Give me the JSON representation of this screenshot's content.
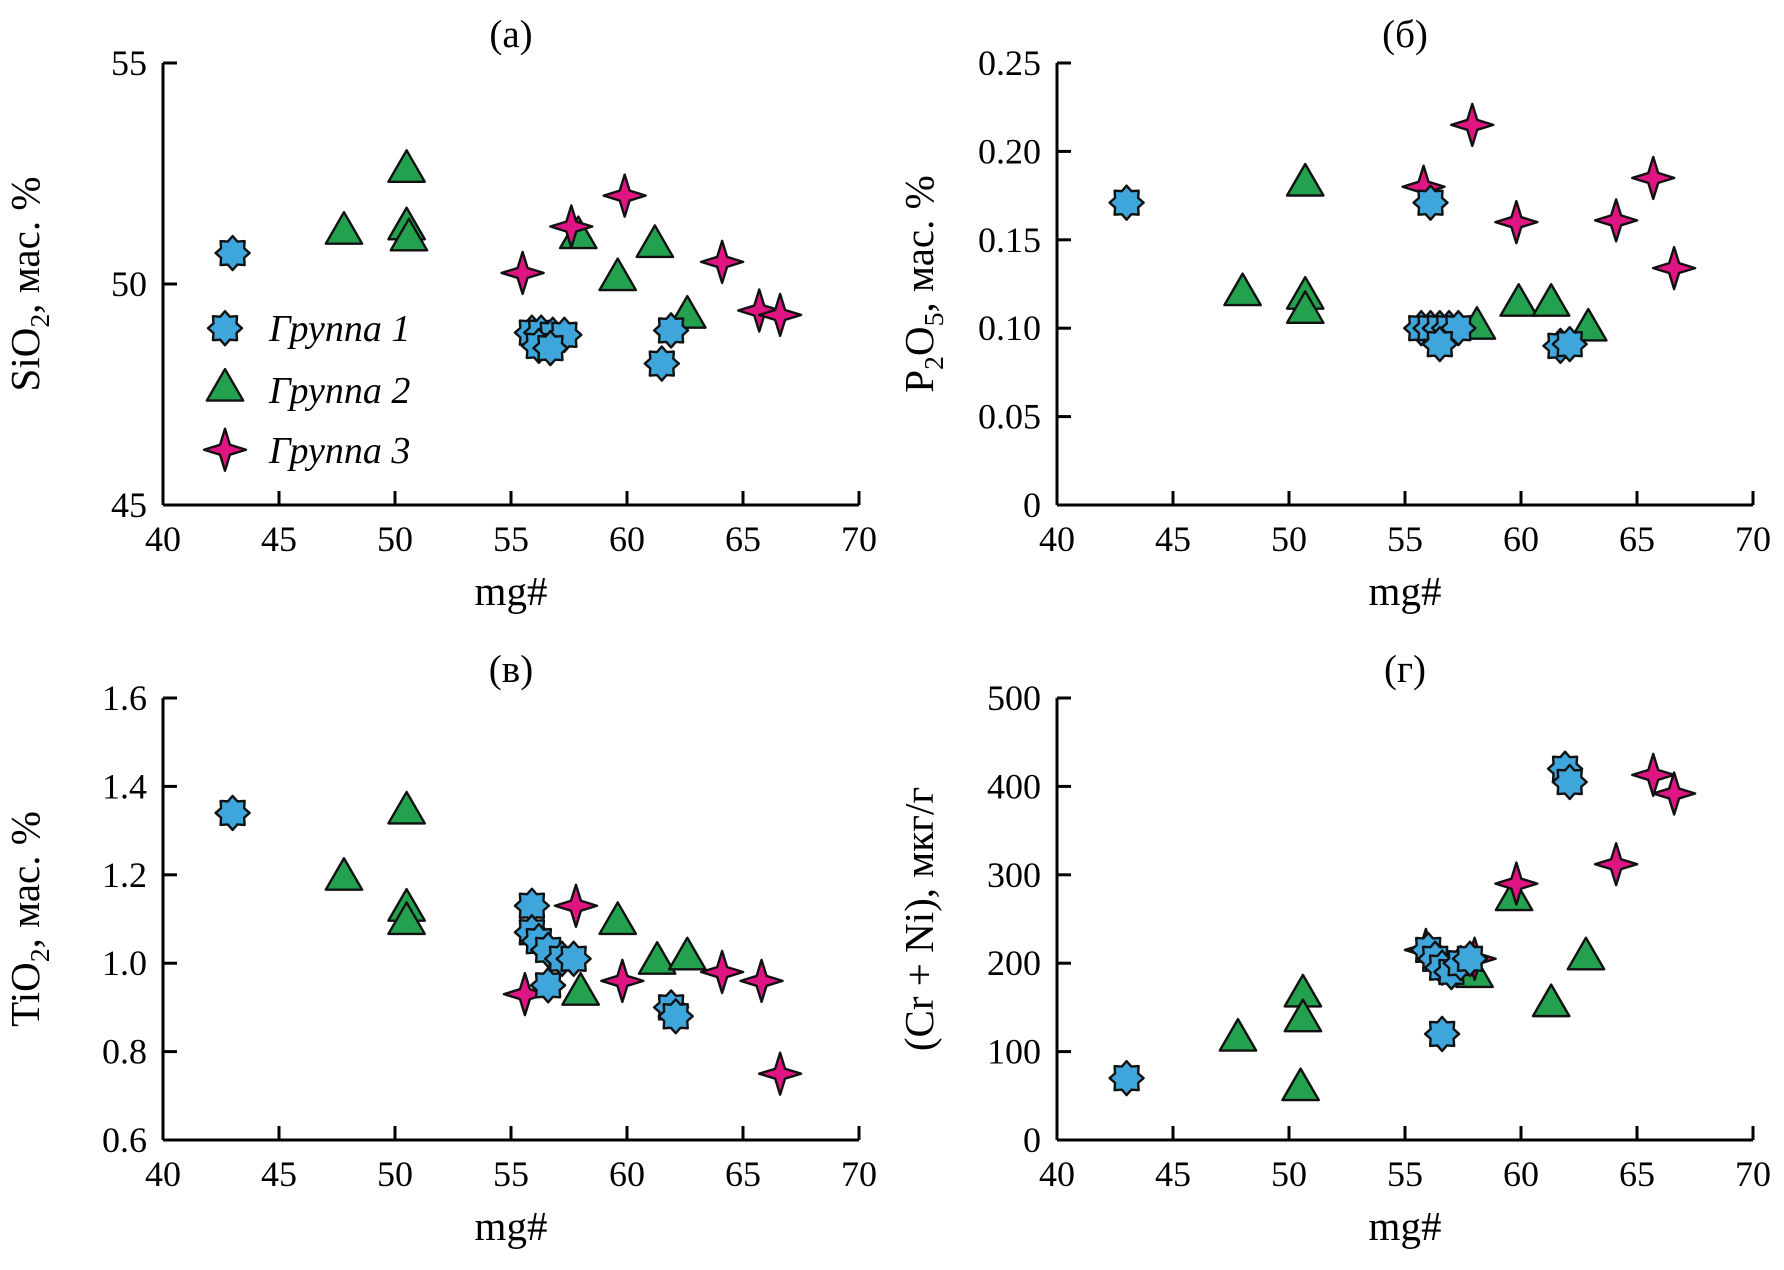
{
  "figure": {
    "background": "#ffffff",
    "axis_color": "#000000",
    "marker_stroke": "#111111",
    "groups": [
      {
        "id": "g1",
        "label": "Группа 1",
        "marker": "octagram",
        "fill": "#3FA6DC"
      },
      {
        "id": "g2",
        "label": "Группа 2",
        "marker": "triangle",
        "fill": "#23A14E"
      },
      {
        "id": "g3",
        "label": "Группа 3",
        "marker": "star4",
        "fill": "#E01584"
      }
    ]
  },
  "chart_data": [
    {
      "id": "a",
      "type": "scatter",
      "title": "(а)",
      "xlabel": "mg#",
      "ylabel": [
        {
          "text": "SiO"
        },
        {
          "text": "2",
          "sub": true
        },
        {
          "text": ", мас. %"
        }
      ],
      "xlim": [
        40,
        70
      ],
      "ylim": [
        45,
        55
      ],
      "xticks": {
        "values": [
          40,
          45,
          50,
          55,
          60,
          65,
          70
        ],
        "labels": [
          "40",
          "45",
          "50",
          "55",
          "60",
          "65",
          "70"
        ]
      },
      "yticks": {
        "values": [
          45,
          50,
          55
        ],
        "labels": [
          "45",
          "50",
          "55"
        ]
      },
      "legend": {
        "show": true
      },
      "series": [
        {
          "group": "g1",
          "points": [
            [
              43,
              50.7
            ],
            [
              55.9,
              48.9
            ],
            [
              56.3,
              48.9
            ],
            [
              56.8,
              48.85
            ],
            [
              57.3,
              48.85
            ],
            [
              56.2,
              48.6
            ],
            [
              56.7,
              48.55
            ],
            [
              61.9,
              48.95
            ],
            [
              61.5,
              48.2
            ]
          ]
        },
        {
          "group": "g2",
          "points": [
            [
              47.8,
              51.15
            ],
            [
              50.5,
              52.55
            ],
            [
              50.5,
              51.25
            ],
            [
              50.6,
              51.0
            ],
            [
              57.9,
              51.05
            ],
            [
              59.6,
              50.1
            ],
            [
              61.2,
              50.85
            ],
            [
              62.6,
              49.25
            ]
          ]
        },
        {
          "group": "g3",
          "points": [
            [
              55.5,
              50.25
            ],
            [
              57.6,
              51.3
            ],
            [
              59.9,
              52.0
            ],
            [
              64.1,
              50.5
            ],
            [
              65.7,
              49.4
            ],
            [
              66.6,
              49.3
            ]
          ]
        }
      ]
    },
    {
      "id": "b",
      "type": "scatter",
      "title": "(б)",
      "xlabel": "mg#",
      "ylabel": [
        {
          "text": "P"
        },
        {
          "text": "2",
          "sub": true
        },
        {
          "text": "O"
        },
        {
          "text": "5",
          "sub": true
        },
        {
          "text": ", мас. %"
        }
      ],
      "xlim": [
        40,
        70
      ],
      "ylim": [
        0,
        0.25
      ],
      "xticks": {
        "values": [
          40,
          45,
          50,
          55,
          60,
          65,
          70
        ],
        "labels": [
          "40",
          "45",
          "50",
          "55",
          "60",
          "65",
          "70"
        ]
      },
      "yticks": {
        "values": [
          0,
          0.05,
          0.1,
          0.15,
          0.2,
          0.25
        ],
        "labels": [
          "0",
          "0.05",
          "0.10",
          "0.15",
          "0.20",
          "0.25"
        ]
      },
      "legend": {
        "show": false
      },
      "series": [
        {
          "group": "g1",
          "points": [
            [
              43,
              0.171
            ],
            [
              56.1,
              0.171
            ],
            [
              55.7,
              0.1
            ],
            [
              56.1,
              0.1
            ],
            [
              56.5,
              0.1
            ],
            [
              56.9,
              0.1
            ],
            [
              57.3,
              0.1
            ],
            [
              56.5,
              0.091
            ],
            [
              61.7,
              0.09
            ],
            [
              62.1,
              0.091
            ]
          ]
        },
        {
          "group": "g2",
          "points": [
            [
              48.0,
              0.119
            ],
            [
              50.7,
              0.181
            ],
            [
              50.7,
              0.117
            ],
            [
              50.7,
              0.109
            ],
            [
              58.1,
              0.1
            ],
            [
              59.9,
              0.113
            ],
            [
              61.3,
              0.113
            ],
            [
              62.9,
              0.099
            ]
          ]
        },
        {
          "group": "g3",
          "points": [
            [
              55.8,
              0.18
            ],
            [
              57.9,
              0.215
            ],
            [
              59.8,
              0.16
            ],
            [
              64.1,
              0.161
            ],
            [
              65.7,
              0.185
            ],
            [
              66.6,
              0.134
            ]
          ]
        }
      ]
    },
    {
      "id": "v",
      "type": "scatter",
      "title": "(в)",
      "xlabel": "mg#",
      "ylabel": [
        {
          "text": "TiO"
        },
        {
          "text": "2",
          "sub": true
        },
        {
          "text": ", мас. %"
        }
      ],
      "xlim": [
        40,
        70
      ],
      "ylim": [
        0.6,
        1.6
      ],
      "xticks": {
        "values": [
          40,
          45,
          50,
          55,
          60,
          65,
          70
        ],
        "labels": [
          "40",
          "45",
          "50",
          "55",
          "60",
          "65",
          "70"
        ]
      },
      "yticks": {
        "values": [
          0.6,
          0.8,
          1.0,
          1.2,
          1.4,
          1.6
        ],
        "labels": [
          "0.6",
          "0.8",
          "1.0",
          "1.2",
          "1.4",
          "1.6"
        ]
      },
      "legend": {
        "show": false
      },
      "series": [
        {
          "group": "g1",
          "points": [
            [
              43,
              1.34
            ],
            [
              55.9,
              1.13
            ],
            [
              55.9,
              1.07
            ],
            [
              56.2,
              1.05
            ],
            [
              56.6,
              1.03
            ],
            [
              57.2,
              1.01
            ],
            [
              57.7,
              1.01
            ],
            [
              56.6,
              0.95
            ],
            [
              61.9,
              0.9
            ],
            [
              62.1,
              0.88
            ]
          ]
        },
        {
          "group": "g2",
          "points": [
            [
              47.8,
              1.19
            ],
            [
              50.5,
              1.34
            ],
            [
              50.5,
              1.12
            ],
            [
              50.5,
              1.09
            ],
            [
              58.0,
              0.93
            ],
            [
              59.6,
              1.09
            ],
            [
              61.3,
              1.0
            ],
            [
              62.6,
              1.01
            ]
          ]
        },
        {
          "group": "g3",
          "points": [
            [
              55.6,
              0.93
            ],
            [
              57.8,
              1.13
            ],
            [
              59.8,
              0.96
            ],
            [
              64.1,
              0.98
            ],
            [
              65.8,
              0.96
            ],
            [
              66.6,
              0.75
            ]
          ]
        }
      ]
    },
    {
      "id": "g",
      "type": "scatter",
      "title": "(г)",
      "xlabel": "mg#",
      "ylabel": [
        {
          "text": "(Cr + Ni), мкг/г"
        }
      ],
      "xlim": [
        40,
        70
      ],
      "ylim": [
        0,
        500
      ],
      "xticks": {
        "values": [
          40,
          45,
          50,
          55,
          60,
          65,
          70
        ],
        "labels": [
          "40",
          "45",
          "50",
          "55",
          "60",
          "65",
          "70"
        ]
      },
      "yticks": {
        "values": [
          0,
          100,
          200,
          300,
          400,
          500
        ],
        "labels": [
          "0",
          "100",
          "200",
          "300",
          "400",
          "500"
        ]
      },
      "legend": {
        "show": false
      },
      "series": [
        {
          "group": "g1",
          "points": [
            [
              43,
              70
            ],
            [
              56.0,
              215
            ],
            [
              56.3,
              205
            ],
            [
              56.6,
              195
            ],
            [
              57.0,
              190
            ],
            [
              57.4,
              200
            ],
            [
              57.8,
              205
            ],
            [
              56.6,
              120
            ],
            [
              61.9,
              420
            ],
            [
              62.1,
              405
            ]
          ]
        },
        {
          "group": "g2",
          "points": [
            [
              47.8,
              113
            ],
            [
              50.6,
              163
            ],
            [
              50.6,
              135
            ],
            [
              50.5,
              57
            ],
            [
              58.0,
              185
            ],
            [
              59.7,
              272
            ],
            [
              61.3,
              152
            ],
            [
              62.8,
              205
            ]
          ]
        },
        {
          "group": "g3",
          "points": [
            [
              55.9,
              215
            ],
            [
              58.0,
              205
            ],
            [
              59.8,
              290
            ],
            [
              64.1,
              312
            ],
            [
              65.7,
              413
            ],
            [
              66.6,
              392
            ]
          ]
        }
      ]
    }
  ]
}
